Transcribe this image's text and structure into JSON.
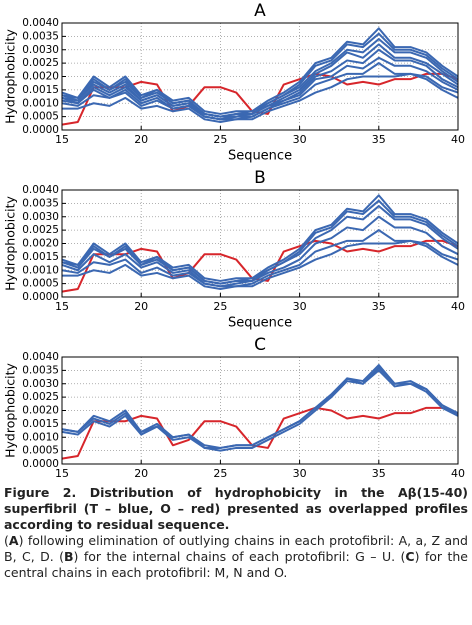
{
  "chart_data": [
    {
      "type": "line",
      "title": "A",
      "x_label": "Sequence",
      "y_label": "Hydrophobicity",
      "x": [
        15,
        16,
        17,
        18,
        19,
        20,
        21,
        22,
        23,
        24,
        25,
        26,
        27,
        28,
        29,
        30,
        31,
        32,
        33,
        34,
        35,
        36,
        37,
        38,
        39,
        40
      ],
      "xlim": [
        15,
        40
      ],
      "xticks": [
        15,
        20,
        25,
        30,
        35,
        40
      ],
      "ylim": [
        0,
        0.004
      ],
      "yticks": [
        {
          "value": 0,
          "label": "0.0000"
        },
        {
          "value": 0.0005,
          "label": "0.0005"
        },
        {
          "value": 0.001,
          "label": "0.0010"
        },
        {
          "value": 0.0015,
          "label": "0.0015"
        },
        {
          "value": 0.002,
          "label": "0.0020"
        },
        {
          "value": 0.0025,
          "label": "0.0025"
        },
        {
          "value": 0.003,
          "label": "0.0030"
        },
        {
          "value": 0.0035,
          "label": "0.0035"
        },
        {
          "value": 0.004,
          "label": "0.0040"
        }
      ],
      "grid": true,
      "series": [
        {
          "color": "#d7262b",
          "values": [
            0.0002,
            0.0003,
            0.0016,
            0.0016,
            0.0016,
            0.0018,
            0.0017,
            0.0007,
            0.0009,
            0.0016,
            0.0016,
            0.0014,
            0.0007,
            0.0006,
            0.0017,
            0.0019,
            0.0021,
            0.002,
            0.0017,
            0.0018,
            0.0017,
            0.0019,
            0.0019,
            0.0021,
            0.0021,
            0.0019
          ]
        },
        {
          "color": "#3b68b2",
          "values": [
            0.0014,
            0.0012,
            0.002,
            0.0016,
            0.002,
            0.0013,
            0.0015,
            0.0011,
            0.0012,
            0.0007,
            0.0006,
            0.0007,
            0.0007,
            0.0011,
            0.0014,
            0.0018,
            0.0025,
            0.0027,
            0.0033,
            0.0032,
            0.0038,
            0.0031,
            0.0031,
            0.0029,
            0.0024,
            0.002
          ]
        },
        {
          "color": "#3b68b2",
          "values": [
            0.0013,
            0.0012,
            0.0019,
            0.0015,
            0.0019,
            0.0012,
            0.0015,
            0.001,
            0.0011,
            0.0006,
            0.0005,
            0.0006,
            0.0007,
            0.001,
            0.0013,
            0.0017,
            0.0024,
            0.0026,
            0.0032,
            0.0031,
            0.0036,
            0.003,
            0.003,
            0.0028,
            0.0023,
            0.0019
          ]
        },
        {
          "color": "#3b68b2",
          "values": [
            0.0013,
            0.0011,
            0.0018,
            0.0015,
            0.0018,
            0.0012,
            0.0014,
            0.001,
            0.0011,
            0.0006,
            0.0005,
            0.0006,
            0.0006,
            0.001,
            0.0013,
            0.0016,
            0.0022,
            0.0025,
            0.003,
            0.0029,
            0.0034,
            0.0029,
            0.0029,
            0.0027,
            0.0022,
            0.0018
          ]
        },
        {
          "color": "#3b68b2",
          "values": [
            0.0012,
            0.0011,
            0.0017,
            0.0014,
            0.0017,
            0.0011,
            0.0013,
            0.0009,
            0.001,
            0.0006,
            0.0005,
            0.0005,
            0.0006,
            0.0009,
            0.0012,
            0.0015,
            0.0021,
            0.0024,
            0.0029,
            0.0027,
            0.0032,
            0.0027,
            0.0027,
            0.0025,
            0.0021,
            0.0017
          ]
        },
        {
          "color": "#3b68b2",
          "values": [
            0.0012,
            0.001,
            0.0016,
            0.0013,
            0.0016,
            0.0011,
            0.0013,
            0.0009,
            0.001,
            0.0005,
            0.0004,
            0.0005,
            0.0006,
            0.0009,
            0.0011,
            0.0014,
            0.002,
            0.0022,
            0.0026,
            0.0025,
            0.003,
            0.0026,
            0.0026,
            0.0024,
            0.0019,
            0.0016
          ]
        },
        {
          "color": "#3b68b2",
          "values": [
            0.0011,
            0.001,
            0.0015,
            0.0012,
            0.0015,
            0.001,
            0.0012,
            0.0008,
            0.0009,
            0.0005,
            0.0004,
            0.0005,
            0.0005,
            0.0008,
            0.0011,
            0.0013,
            0.0019,
            0.002,
            0.0024,
            0.0023,
            0.0027,
            0.0024,
            0.0024,
            0.0022,
            0.0018,
            0.0015
          ]
        },
        {
          "color": "#3b68b2",
          "values": [
            0.001,
            0.0009,
            0.0013,
            0.0012,
            0.0014,
            0.0009,
            0.0011,
            0.0008,
            0.0009,
            0.0005,
            0.0004,
            0.0004,
            0.0005,
            0.0008,
            0.001,
            0.0012,
            0.0017,
            0.0019,
            0.0021,
            0.0021,
            0.0025,
            0.0021,
            0.0021,
            0.002,
            0.0016,
            0.0014
          ]
        },
        {
          "color": "#3b68b2",
          "values": [
            0.0008,
            0.0008,
            0.001,
            0.0009,
            0.0012,
            0.0008,
            0.0009,
            0.0007,
            0.0008,
            0.0004,
            0.0003,
            0.0004,
            0.0004,
            0.0007,
            0.0009,
            0.0011,
            0.0014,
            0.0016,
            0.0019,
            0.002,
            0.002,
            0.002,
            0.0021,
            0.0019,
            0.0015,
            0.0012
          ]
        }
      ]
    },
    {
      "type": "line",
      "title": "B",
      "x_label": "Sequence",
      "y_label": "Hydrophobicity",
      "x": [
        15,
        16,
        17,
        18,
        19,
        20,
        21,
        22,
        23,
        24,
        25,
        26,
        27,
        28,
        29,
        30,
        31,
        32,
        33,
        34,
        35,
        36,
        37,
        38,
        39,
        40
      ],
      "xlim": [
        15,
        40
      ],
      "xticks": [
        15,
        20,
        25,
        30,
        35,
        40
      ],
      "ylim": [
        0,
        0.004
      ],
      "yticks": [
        {
          "value": 0,
          "label": "0.0000"
        },
        {
          "value": 0.0005,
          "label": "0.0005"
        },
        {
          "value": 0.001,
          "label": "0.0010"
        },
        {
          "value": 0.0015,
          "label": "0.0015"
        },
        {
          "value": 0.002,
          "label": "0.0020"
        },
        {
          "value": 0.0025,
          "label": "0.0025"
        },
        {
          "value": 0.003,
          "label": "0.0030"
        },
        {
          "value": 0.0035,
          "label": "0.0035"
        },
        {
          "value": 0.004,
          "label": "0.0040"
        }
      ],
      "grid": true,
      "series": [
        {
          "color": "#d7262b",
          "values": [
            0.0002,
            0.0003,
            0.0016,
            0.0016,
            0.0016,
            0.0018,
            0.0017,
            0.0007,
            0.0009,
            0.0016,
            0.0016,
            0.0014,
            0.0007,
            0.0006,
            0.0017,
            0.0019,
            0.0021,
            0.002,
            0.0017,
            0.0018,
            0.0017,
            0.0019,
            0.0019,
            0.0021,
            0.0021,
            0.0019
          ]
        },
        {
          "color": "#3b68b2",
          "values": [
            0.0014,
            0.0012,
            0.002,
            0.0016,
            0.002,
            0.0013,
            0.0015,
            0.0011,
            0.0012,
            0.0007,
            0.0006,
            0.0007,
            0.0007,
            0.0011,
            0.0014,
            0.0018,
            0.0025,
            0.0027,
            0.0033,
            0.0032,
            0.0038,
            0.0031,
            0.0031,
            0.0029,
            0.0024,
            0.002
          ]
        },
        {
          "color": "#3b68b2",
          "values": [
            0.0013,
            0.0012,
            0.0019,
            0.0015,
            0.0019,
            0.0012,
            0.0015,
            0.001,
            0.0011,
            0.0006,
            0.0005,
            0.0006,
            0.0007,
            0.001,
            0.0013,
            0.0017,
            0.0024,
            0.0026,
            0.0032,
            0.0031,
            0.0036,
            0.003,
            0.003,
            0.0028,
            0.0023,
            0.0019
          ]
        },
        {
          "color": "#3b68b2",
          "values": [
            0.0013,
            0.0011,
            0.0018,
            0.0015,
            0.0018,
            0.0012,
            0.0014,
            0.001,
            0.0011,
            0.0006,
            0.0005,
            0.0006,
            0.0006,
            0.001,
            0.0013,
            0.0016,
            0.0022,
            0.0025,
            0.003,
            0.0029,
            0.0034,
            0.0029,
            0.0029,
            0.0027,
            0.0022,
            0.0018
          ]
        },
        {
          "color": "#3b68b2",
          "values": [
            0.0012,
            0.001,
            0.0016,
            0.0013,
            0.0016,
            0.0011,
            0.0013,
            0.0009,
            0.001,
            0.0005,
            0.0004,
            0.0005,
            0.0006,
            0.0009,
            0.0011,
            0.0014,
            0.002,
            0.0022,
            0.0026,
            0.0025,
            0.003,
            0.0026,
            0.0026,
            0.0024,
            0.0019,
            0.0016
          ]
        },
        {
          "color": "#3b68b2",
          "values": [
            0.001,
            0.0009,
            0.0013,
            0.0012,
            0.0014,
            0.0009,
            0.0011,
            0.0008,
            0.0009,
            0.0005,
            0.0004,
            0.0004,
            0.0005,
            0.0008,
            0.001,
            0.0012,
            0.0017,
            0.0019,
            0.0021,
            0.0021,
            0.0025,
            0.0021,
            0.0021,
            0.002,
            0.0016,
            0.0014
          ]
        },
        {
          "color": "#3b68b2",
          "values": [
            0.0008,
            0.0008,
            0.001,
            0.0009,
            0.0012,
            0.0008,
            0.0009,
            0.0007,
            0.0008,
            0.0004,
            0.0003,
            0.0004,
            0.0004,
            0.0007,
            0.0009,
            0.0011,
            0.0014,
            0.0016,
            0.0019,
            0.002,
            0.002,
            0.002,
            0.0021,
            0.0019,
            0.0015,
            0.0012
          ]
        }
      ]
    },
    {
      "type": "line",
      "title": "C",
      "x_label": "Sequence",
      "y_label": "Hydrophobicity",
      "x": [
        15,
        16,
        17,
        18,
        19,
        20,
        21,
        22,
        23,
        24,
        25,
        26,
        27,
        28,
        29,
        30,
        31,
        32,
        33,
        34,
        35,
        36,
        37,
        38,
        39,
        40
      ],
      "xlim": [
        15,
        40
      ],
      "xticks": [
        15,
        20,
        25,
        30,
        35,
        40
      ],
      "ylim": [
        0,
        0.004
      ],
      "yticks": [
        {
          "value": 0,
          "label": "0.0000"
        },
        {
          "value": 0.0005,
          "label": "0.0005"
        },
        {
          "value": 0.001,
          "label": "0.0010"
        },
        {
          "value": 0.0015,
          "label": "0.0015"
        },
        {
          "value": 0.002,
          "label": "0.0020"
        },
        {
          "value": 0.0025,
          "label": "0.0025"
        },
        {
          "value": 0.003,
          "label": "0.0030"
        },
        {
          "value": 0.0035,
          "label": "0.0035"
        },
        {
          "value": 0.004,
          "label": "0.0040"
        }
      ],
      "grid": true,
      "series": [
        {
          "color": "#d7262b",
          "values": [
            0.0002,
            0.0003,
            0.0016,
            0.0016,
            0.0016,
            0.0018,
            0.0017,
            0.0007,
            0.0009,
            0.0016,
            0.0016,
            0.0014,
            0.0007,
            0.0006,
            0.0017,
            0.0019,
            0.0021,
            0.002,
            0.0017,
            0.0018,
            0.0017,
            0.0019,
            0.0019,
            0.0021,
            0.0021,
            0.0019
          ]
        },
        {
          "color": "#3b68b2",
          "values": [
            0.0013,
            0.0012,
            0.0018,
            0.0016,
            0.002,
            0.0012,
            0.0015,
            0.001,
            0.0011,
            0.0007,
            0.0006,
            0.0007,
            0.0007,
            0.001,
            0.0013,
            0.0016,
            0.0021,
            0.0026,
            0.0032,
            0.0031,
            0.0037,
            0.003,
            0.0031,
            0.0028,
            0.0022,
            0.0018
          ]
        },
        {
          "color": "#3b68b2",
          "values": [
            0.0013,
            0.0012,
            0.0017,
            0.0015,
            0.0019,
            0.0012,
            0.0014,
            0.001,
            0.0011,
            0.0006,
            0.0006,
            0.0007,
            0.0007,
            0.001,
            0.0013,
            0.0016,
            0.0021,
            0.0025,
            0.0032,
            0.003,
            0.0036,
            0.003,
            0.003,
            0.0028,
            0.0022,
            0.0019
          ]
        },
        {
          "color": "#3b68b2",
          "values": [
            0.0012,
            0.0011,
            0.0016,
            0.0014,
            0.0018,
            0.0011,
            0.0014,
            0.0009,
            0.001,
            0.0006,
            0.0005,
            0.0006,
            0.0006,
            0.0009,
            0.0012,
            0.0015,
            0.002,
            0.0025,
            0.0031,
            0.003,
            0.0035,
            0.0029,
            0.003,
            0.0027,
            0.0021,
            0.0018
          ]
        }
      ]
    }
  ],
  "caption": {
    "title": "Figure 2. Distribution of hydrophobicity in the Aβ(15-40) superfibril (T – blue, O – red) presented as overlapped profiles according to residual sequence.",
    "parts": [
      "(",
      "A",
      ") following elimination of outlying chains in each protofibril: A, a, Z and B, C, D. (",
      "B",
      ") for the internal chains of each protofibril: G – U. (",
      "C",
      ") for the central chains in each protofibril: M, N and O."
    ]
  }
}
